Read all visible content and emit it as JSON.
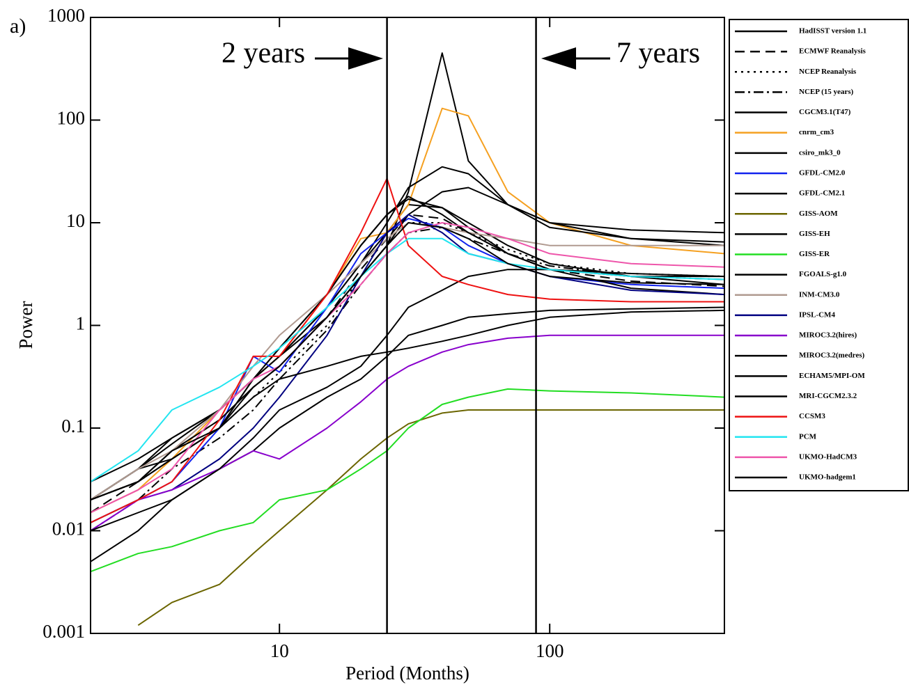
{
  "chart_data": {
    "type": "line",
    "panel_label": "a)",
    "xlabel": "Period (Months)",
    "ylabel": "Power",
    "log_x": true,
    "log_y": true,
    "xlim": [
      2,
      443
    ],
    "ylim": [
      0.001,
      1000
    ],
    "xticks": [
      10,
      100
    ],
    "yticks": [
      0.001,
      0.01,
      0.1,
      1,
      10,
      100,
      1000
    ],
    "vlines": [
      25,
      89
    ],
    "annotations": [
      "2 years",
      "7 years"
    ],
    "x": [
      2,
      3,
      4,
      6,
      8,
      10,
      15,
      20,
      25,
      30,
      40,
      50,
      70,
      100,
      200,
      443
    ],
    "series": [
      {
        "name": "HadISST version 1.1",
        "color": "#000000",
        "line_style": "solid",
        "values": [
          0.02,
          0.04,
          0.05,
          0.1,
          0.3,
          0.5,
          1.5,
          4,
          8,
          15,
          14,
          10,
          6,
          4,
          3,
          2.5
        ]
      },
      {
        "name": "ECMWF Reanalysis",
        "color": "#000000",
        "line_style": "dashed",
        "values": [
          0.015,
          0.03,
          0.06,
          0.12,
          0.25,
          0.4,
          1.2,
          3.5,
          7,
          12,
          11,
          8,
          5,
          3.5,
          2.7,
          2.4
        ]
      },
      {
        "name": "NCEP Reanalysis",
        "color": "#000000",
        "line_style": "dotted",
        "values": [
          0.02,
          0.03,
          0.05,
          0.1,
          0.2,
          0.35,
          1,
          3,
          6,
          10,
          10,
          8,
          5.5,
          4,
          3.2,
          3
        ]
      },
      {
        "name": "NCEP (15 years)",
        "color": "#000000",
        "line_style": "dashdot",
        "values": [
          0.01,
          0.02,
          0.04,
          0.08,
          0.15,
          0.3,
          0.9,
          2.5,
          5,
          8,
          9,
          7,
          5,
          3.8,
          3,
          2.8
        ]
      },
      {
        "name": "CGCM3.1(T47)",
        "color": "#000000",
        "line_style": "solid",
        "values": [
          0.03,
          0.05,
          0.08,
          0.15,
          0.3,
          0.5,
          1.2,
          3,
          6,
          20,
          450,
          40,
          15,
          10,
          8.5,
          8
        ]
      },
      {
        "name": "cnrm_cm3",
        "color": "#f5a020",
        "line_style": "solid",
        "values": [
          0.015,
          0.025,
          0.05,
          0.15,
          0.3,
          0.5,
          2,
          7,
          8,
          15,
          130,
          110,
          20,
          10,
          6,
          5
        ]
      },
      {
        "name": "csiro_mk3_0",
        "color": "#000000",
        "line_style": "solid",
        "values": [
          0.02,
          0.04,
          0.07,
          0.15,
          0.3,
          0.5,
          1.5,
          4,
          10,
          22,
          35,
          30,
          15,
          9,
          7,
          6.5
        ]
      },
      {
        "name": "GFDL-CM2.0",
        "color": "#1122ee",
        "line_style": "solid",
        "values": [
          0.012,
          0.02,
          0.03,
          0.1,
          0.5,
          0.35,
          1.5,
          5,
          8,
          11,
          9,
          6,
          4,
          3,
          2.5,
          2.3
        ]
      },
      {
        "name": "GFDL-CM2.1",
        "color": "#000000",
        "line_style": "solid",
        "values": [
          0.02,
          0.03,
          0.06,
          0.12,
          0.25,
          0.4,
          1.2,
          3,
          6,
          12,
          20,
          22,
          15,
          10,
          7,
          6
        ]
      },
      {
        "name": "GISS-AOM",
        "color": "#6b6500",
        "line_style": "solid",
        "values": [
          null,
          0.0012,
          0.002,
          0.003,
          0.006,
          0.01,
          0.025,
          0.05,
          0.08,
          0.11,
          0.14,
          0.15,
          0.15,
          0.15,
          0.15,
          0.15
        ]
      },
      {
        "name": "GISS-EH",
        "color": "#000000",
        "line_style": "solid",
        "values": [
          0.005,
          0.01,
          0.02,
          0.04,
          0.06,
          0.1,
          0.2,
          0.3,
          0.5,
          0.8,
          1,
          1.2,
          1.3,
          1.4,
          1.45,
          1.5
        ]
      },
      {
        "name": "GISS-ER",
        "color": "#22dd22",
        "line_style": "solid",
        "values": [
          0.004,
          0.006,
          0.007,
          0.01,
          0.012,
          0.02,
          0.025,
          0.04,
          0.06,
          0.1,
          0.17,
          0.2,
          0.24,
          0.23,
          0.22,
          0.2
        ]
      },
      {
        "name": "FGOALS-g1.0",
        "color": "#000000",
        "line_style": "solid",
        "values": [
          0.02,
          0.04,
          0.08,
          0.15,
          0.3,
          0.6,
          2,
          6,
          12,
          17,
          14,
          9,
          5,
          3.5,
          2.3,
          2
        ]
      },
      {
        "name": "INM-CM3.0",
        "color": "#b09a90",
        "line_style": "solid",
        "values": [
          0.02,
          0.04,
          0.06,
          0.15,
          0.4,
          0.8,
          2,
          4,
          7,
          10,
          9,
          8,
          7,
          6,
          6,
          6
        ]
      },
      {
        "name": "IPSL-CM4",
        "color": "#000080",
        "line_style": "solid",
        "values": [
          0.012,
          0.02,
          0.025,
          0.05,
          0.1,
          0.2,
          0.8,
          3,
          8,
          12,
          8,
          5,
          4,
          3,
          2.2,
          2
        ]
      },
      {
        "name": "MIROC3.2(hires)",
        "color": "#8800cc",
        "line_style": "solid",
        "values": [
          0.01,
          0.02,
          0.025,
          0.04,
          0.06,
          0.05,
          0.1,
          0.18,
          0.3,
          0.4,
          0.55,
          0.65,
          0.75,
          0.8,
          0.8,
          0.8
        ]
      },
      {
        "name": "MIROC3.2(medres)",
        "color": "#000000",
        "line_style": "solid",
        "values": [
          0.01,
          0.015,
          0.02,
          0.04,
          0.08,
          0.15,
          0.25,
          0.4,
          0.8,
          1.5,
          2.2,
          3,
          3.5,
          3.5,
          3.2,
          3
        ]
      },
      {
        "name": "ECHAM5/MPI-OM",
        "color": "#000000",
        "line_style": "solid",
        "values": [
          0.02,
          0.03,
          0.05,
          0.1,
          0.3,
          0.6,
          2,
          6,
          12,
          18,
          12,
          8,
          5,
          3.5,
          3,
          3
        ]
      },
      {
        "name": "MRI-CGCM2.3.2",
        "color": "#000000",
        "line_style": "solid",
        "values": [
          0.02,
          0.03,
          0.05,
          0.1,
          0.2,
          0.3,
          0.4,
          0.5,
          0.55,
          0.6,
          0.7,
          0.8,
          1,
          1.2,
          1.35,
          1.4
        ]
      },
      {
        "name": "CCSM3",
        "color": "#ee1111",
        "line_style": "solid",
        "values": [
          0.012,
          0.02,
          0.03,
          0.12,
          0.5,
          0.5,
          2,
          8,
          27,
          6,
          3,
          2.5,
          2,
          1.8,
          1.7,
          1.7
        ]
      },
      {
        "name": "PCM",
        "color": "#22e5f0",
        "line_style": "solid",
        "values": [
          0.03,
          0.06,
          0.15,
          0.25,
          0.4,
          0.6,
          1.5,
          3,
          5,
          7,
          7,
          5,
          4,
          3.5,
          3,
          2.8
        ]
      },
      {
        "name": "UKMO-HadCM3",
        "color": "#ee55aa",
        "line_style": "solid",
        "values": [
          0.015,
          0.025,
          0.04,
          0.15,
          0.3,
          0.4,
          1.2,
          2.5,
          5,
          8,
          10,
          9,
          7,
          5,
          4,
          3.7
        ]
      },
      {
        "name": "UKMO-hadgem1",
        "color": "#000000",
        "line_style": "solid",
        "values": [
          0.02,
          0.03,
          0.06,
          0.1,
          0.25,
          0.4,
          1.2,
          3,
          6,
          10,
          9,
          7,
          4,
          3,
          2.6,
          2.5
        ]
      }
    ]
  }
}
